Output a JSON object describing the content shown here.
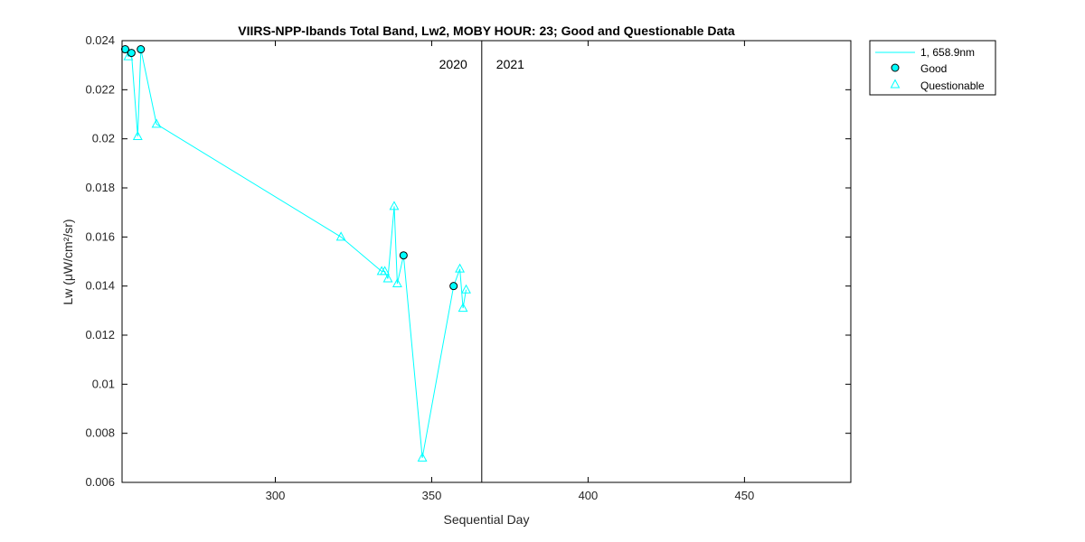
{
  "chart_data": {
    "type": "line",
    "title": "VIIRS-NPP-Ibands Total Band,  Lw2, MOBY HOUR: 23;  Good and Questionable Data",
    "xlabel": "Sequential Day",
    "ylabel": "Lw (μW/cm²/sr)",
    "xlim": [
      251,
      484
    ],
    "ylim": [
      0.006,
      0.024
    ],
    "xticks": [
      300,
      350,
      400,
      450
    ],
    "yticks": [
      0.006,
      0.008,
      0.01,
      0.012,
      0.014,
      0.016,
      0.018,
      0.02,
      0.022,
      0.024
    ],
    "ytick_labels": [
      "0.006",
      "0.008",
      "0.01",
      "0.012",
      "0.014",
      "0.016",
      "0.018",
      "0.02",
      "0.022",
      "0.024"
    ],
    "grid": false,
    "year_divider_x": 366,
    "year_labels": [
      {
        "text": "2020",
        "side": "left"
      },
      {
        "text": "2021",
        "side": "right"
      }
    ],
    "legend": {
      "position": "outside-top-right",
      "entries": [
        {
          "label": "1, 658.9nm",
          "kind": "line"
        },
        {
          "label": "Good",
          "kind": "circle"
        },
        {
          "label": "Questionable",
          "kind": "triangle"
        }
      ]
    },
    "colors": {
      "series": "#00ffff",
      "marker_edge_good": "#000000",
      "axes": "#000000"
    },
    "series": [
      {
        "name": "1, 658.9nm",
        "x": [
          252,
          253,
          254,
          256,
          257,
          262,
          321,
          334,
          335,
          336,
          338,
          339,
          341,
          347,
          357,
          359,
          360,
          361
        ],
        "y": [
          0.02365,
          0.02335,
          0.0235,
          0.0201,
          0.02365,
          0.0206,
          0.016,
          0.0146,
          0.0146,
          0.0143,
          0.01725,
          0.0141,
          0.01525,
          0.007,
          0.014,
          0.0147,
          0.0131,
          0.01385
        ],
        "quality": [
          "good",
          "questionable",
          "good",
          "questionable",
          "good",
          "questionable",
          "questionable",
          "questionable",
          "questionable",
          "questionable",
          "questionable",
          "questionable",
          "good",
          "questionable",
          "good",
          "questionable",
          "questionable",
          "questionable"
        ]
      }
    ]
  }
}
